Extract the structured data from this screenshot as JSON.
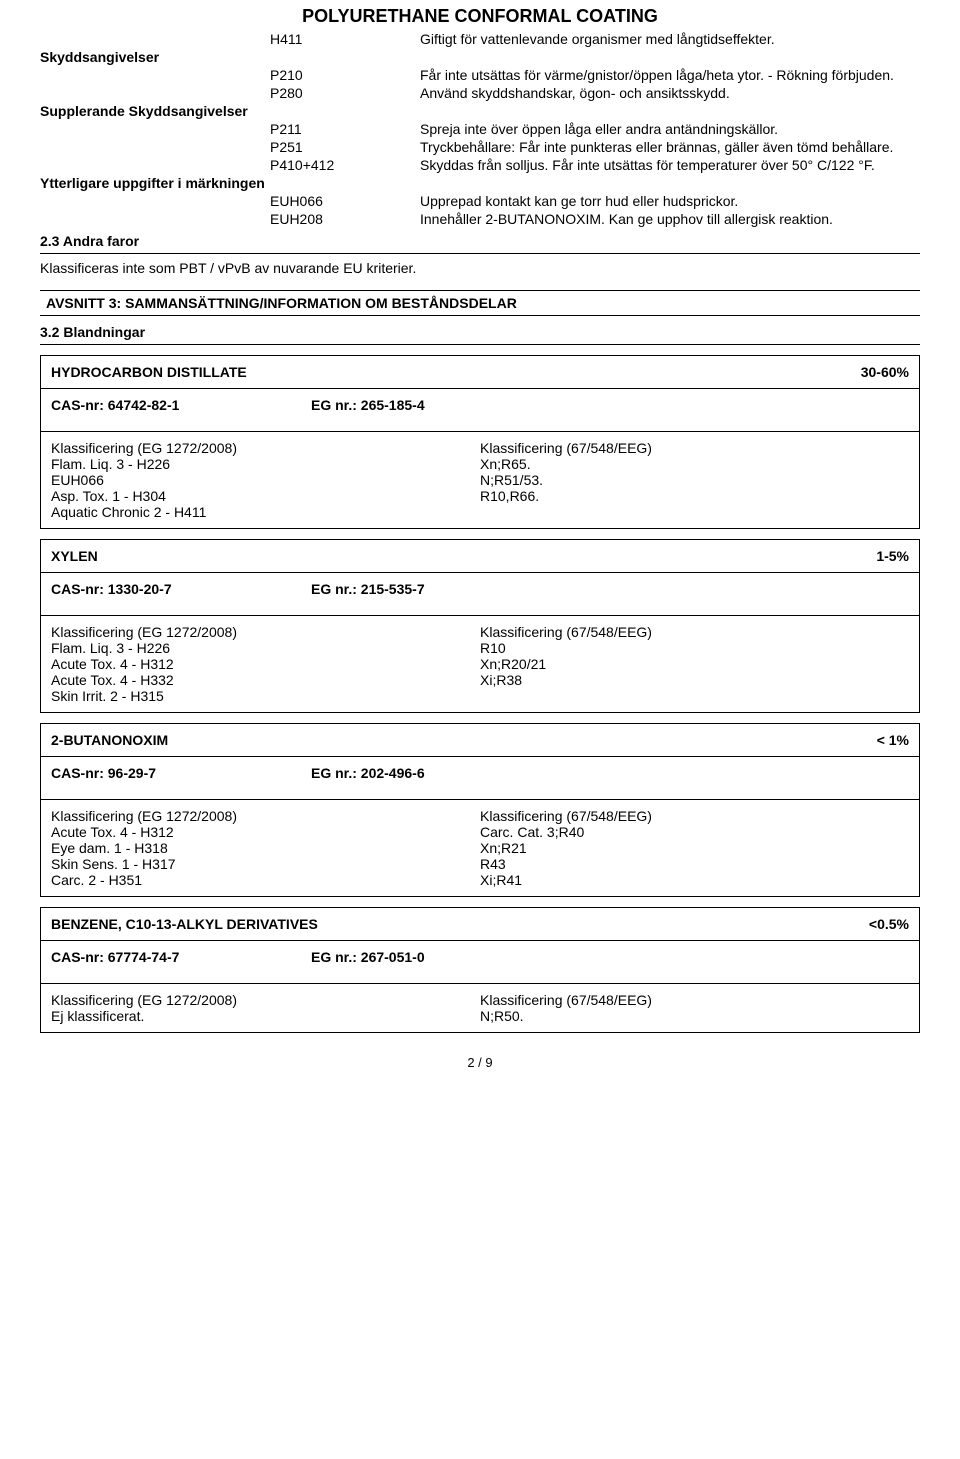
{
  "title": "POLYURETHANE CONFORMAL COATING",
  "statements": [
    {
      "code": "H411",
      "text": "Giftigt för vattenlevande organismer med långtidseffekter."
    }
  ],
  "skydds_label": "Skyddsangivelser",
  "skydds": [
    {
      "code": "P210",
      "text": "Får inte utsättas för värme/gnistor/öppen låga/heta ytor. - Rökning förbjuden."
    },
    {
      "code": "P280",
      "text": "Använd skyddshandskar, ögon- och ansiktsskydd."
    }
  ],
  "suppl_label": "Supplerande Skyddsangivelser",
  "suppl": [
    {
      "code": "P211",
      "text": "Spreja inte över öppen låga eller andra antändningskällor."
    },
    {
      "code": "P251",
      "text": "Tryckbehållare: Får inte punkteras eller brännas, gäller även tömd behållare."
    },
    {
      "code": "P410+412",
      "text": "Skyddas från solljus. Får inte utsättas för temperaturer över 50° C/122 °F."
    }
  ],
  "extra_label": "Ytterligare uppgifter i märkningen",
  "extra": [
    {
      "code": "EUH066",
      "text": "Upprepad kontakt kan ge torr hud eller hudsprickor."
    },
    {
      "code": "EUH208",
      "text": "Innehåller 2-BUTANONOXIM. Kan ge upphov till allergisk reaktion."
    }
  ],
  "sec23_heading": "2.3 Andra faror",
  "sec23_text": "Klassificeras inte som PBT / vPvB av nuvarande EU kriterier.",
  "avsnitt3": "AVSNITT 3: SAMMANSÄTTNING/INFORMATION OM BESTÅNDSDELAR",
  "sec32_heading": "3.2 Blandningar",
  "ingredients": [
    {
      "name": "HYDROCARBON DISTILLATE",
      "pct": "30-60%",
      "cas_label": "CAS-nr: 64742-82-1",
      "eg_label": "EG nr.: 265-185-4",
      "left_title": "Klassificering (EG 1272/2008)",
      "left_lines": [
        "Flam. Liq. 3 - H226",
        "EUH066",
        "Asp. Tox. 1 - H304",
        "Aquatic Chronic 2 - H411"
      ],
      "right_title": "Klassificering (67/548/EEG)",
      "right_lines": [
        "Xn;R65.",
        "N;R51/53.",
        "R10,R66."
      ]
    },
    {
      "name": "XYLEN",
      "pct": "1-5%",
      "cas_label": "CAS-nr: 1330-20-7",
      "eg_label": "EG nr.: 215-535-7",
      "left_title": "Klassificering (EG 1272/2008)",
      "left_lines": [
        "Flam. Liq. 3 - H226",
        "Acute Tox. 4 - H312",
        "Acute Tox. 4 - H332",
        "Skin Irrit. 2 - H315"
      ],
      "right_title": "Klassificering (67/548/EEG)",
      "right_lines": [
        "R10",
        "Xn;R20/21",
        "Xi;R38"
      ]
    },
    {
      "name": "2-BUTANONOXIM",
      "pct": "< 1%",
      "cas_label": "CAS-nr: 96-29-7",
      "eg_label": "EG nr.: 202-496-6",
      "left_title": "Klassificering (EG 1272/2008)",
      "left_lines": [
        "Acute Tox. 4 - H312",
        "Eye dam. 1 - H318",
        "Skin Sens. 1 - H317",
        "Carc. 2 - H351"
      ],
      "right_title": "Klassificering (67/548/EEG)",
      "right_lines": [
        "Carc. Cat. 3;R40",
        "Xn;R21",
        "R43",
        "Xi;R41"
      ]
    },
    {
      "name": "BENZENE, C10-13-ALKYL DERIVATIVES",
      "pct": "<0.5%",
      "cas_label": "CAS-nr: 67774-74-7",
      "eg_label": "EG nr.: 267-051-0",
      "left_title": "Klassificering (EG 1272/2008)",
      "left_lines": [
        "Ej klassificerat."
      ],
      "right_title": "Klassificering (67/548/EEG)",
      "right_lines": [
        "N;R50."
      ]
    }
  ],
  "footer": "2 /  9"
}
